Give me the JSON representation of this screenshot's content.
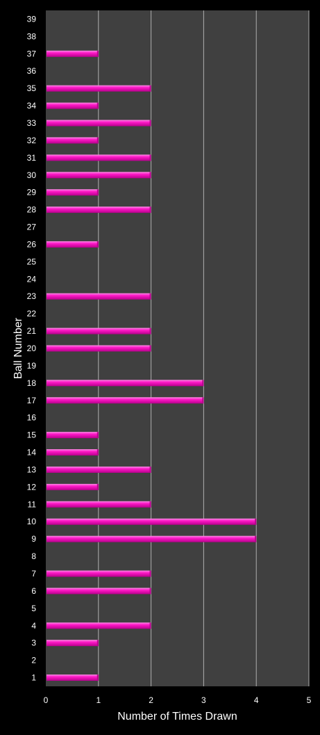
{
  "chart_data": {
    "type": "bar",
    "orientation": "horizontal",
    "title": "",
    "xlabel": "Number of Times Drawn",
    "ylabel": "Ball Number",
    "xlim": [
      0,
      5
    ],
    "x_ticks": [
      "0",
      "1",
      "2",
      "3",
      "4",
      "5"
    ],
    "grid": true,
    "categories": [
      "1",
      "2",
      "3",
      "4",
      "5",
      "6",
      "7",
      "8",
      "9",
      "10",
      "11",
      "12",
      "13",
      "14",
      "15",
      "16",
      "17",
      "18",
      "19",
      "20",
      "21",
      "22",
      "23",
      "24",
      "25",
      "26",
      "27",
      "28",
      "29",
      "30",
      "31",
      "32",
      "33",
      "34",
      "35",
      "36",
      "37",
      "38",
      "39"
    ],
    "values": [
      1,
      0,
      1,
      2,
      0,
      2,
      2,
      0,
      4,
      4,
      2,
      1,
      2,
      1,
      1,
      0,
      3,
      3,
      0,
      2,
      2,
      0,
      2,
      0,
      0,
      1,
      0,
      2,
      1,
      2,
      2,
      1,
      2,
      1,
      2,
      0,
      1,
      0,
      0
    ],
    "colors": {
      "background": "#000000",
      "plot_area": "#404040",
      "gridline": "#b0b0b0",
      "bar": "#ff1ac8",
      "bar_highlight": "#ff8ee6",
      "bar_shadow": "#b8008c",
      "text": "#ffffff"
    }
  }
}
